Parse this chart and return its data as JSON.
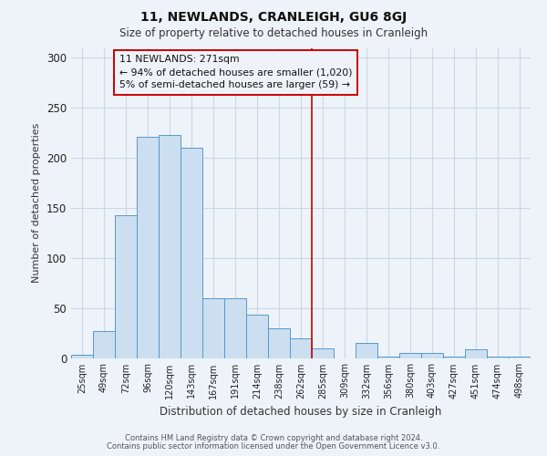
{
  "title": "11, NEWLANDS, CRANLEIGH, GU6 8GJ",
  "subtitle": "Size of property relative to detached houses in Cranleigh",
  "xlabel": "Distribution of detached houses by size in Cranleigh",
  "ylabel": "Number of detached properties",
  "bar_labels": [
    "25sqm",
    "49sqm",
    "72sqm",
    "96sqm",
    "120sqm",
    "143sqm",
    "167sqm",
    "191sqm",
    "214sqm",
    "238sqm",
    "262sqm",
    "285sqm",
    "309sqm",
    "332sqm",
    "356sqm",
    "380sqm",
    "403sqm",
    "427sqm",
    "451sqm",
    "474sqm",
    "498sqm"
  ],
  "bar_values": [
    3,
    27,
    143,
    221,
    223,
    210,
    60,
    60,
    43,
    30,
    20,
    10,
    0,
    15,
    1,
    5,
    5,
    1,
    9,
    1,
    1
  ],
  "bar_color": "#ccdff0",
  "bar_edge_color": "#5599cc",
  "grid_color": "#c8d8e8",
  "bg_color": "#eef3f9",
  "vline_x": 10.5,
  "vline_color": "#cc0000",
  "annotation_title": "11 NEWLANDS: 271sqm",
  "annotation_line1": "← 94% of detached houses are smaller (1,020)",
  "annotation_line2": "5% of semi-detached houses are larger (59) →",
  "annotation_box_color": "#cc0000",
  "footnote1": "Contains HM Land Registry data © Crown copyright and database right 2024.",
  "footnote2": "Contains public sector information licensed under the Open Government Licence v3.0.",
  "ylim": [
    0,
    310
  ],
  "yticks": [
    0,
    50,
    100,
    150,
    200,
    250,
    300
  ]
}
